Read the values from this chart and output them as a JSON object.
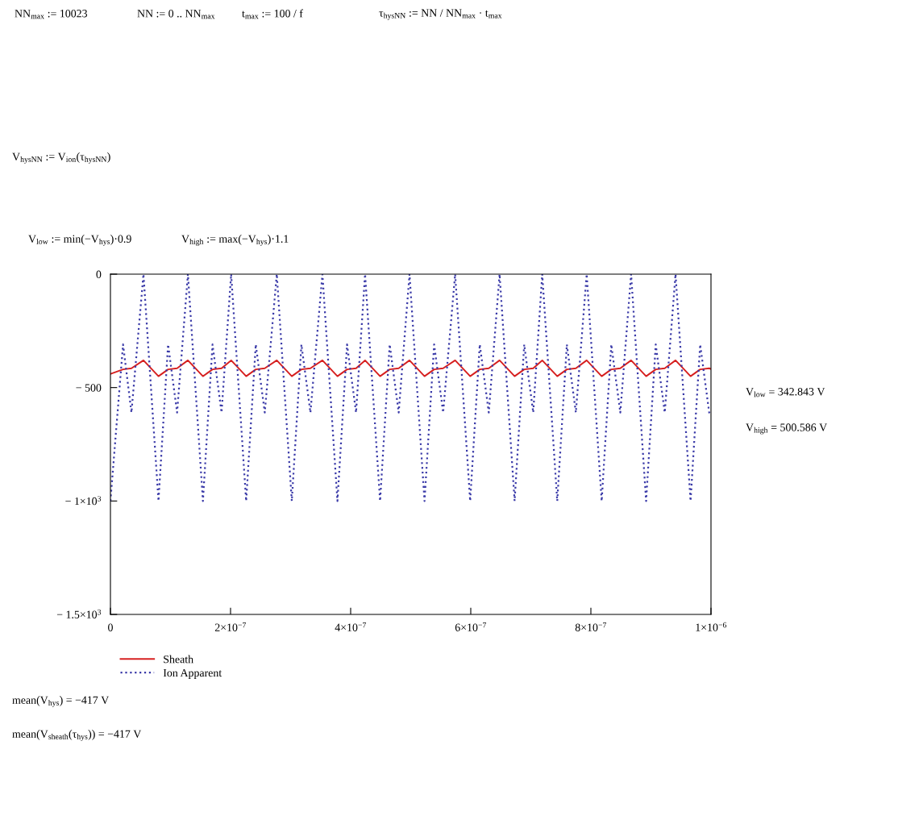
{
  "chart_data": {
    "type": "line",
    "x": [
      0,
      2.1e-08,
      3.5e-08,
      5.5e-08,
      8e-08,
      9.6e-08,
      1.11e-07,
      1.29e-07,
      1.54e-07,
      1.7e-07,
      1.85e-07,
      2.01e-07,
      2.26e-07,
      2.42e-07,
      2.57e-07,
      2.77e-07,
      3.02e-07,
      3.18e-07,
      3.33e-07,
      3.53e-07,
      3.78e-07,
      3.94e-07,
      4.09e-07,
      4.24e-07,
      4.49e-07,
      4.65e-07,
      4.8e-07,
      4.98e-07,
      5.23e-07,
      5.39e-07,
      5.54e-07,
      5.74e-07,
      5.99e-07,
      6.15e-07,
      6.3e-07,
      6.48e-07,
      6.73e-07,
      6.89e-07,
      7.04e-07,
      7.19e-07,
      7.44e-07,
      7.6e-07,
      7.75e-07,
      7.93e-07,
      8.18e-07,
      8.34e-07,
      8.49e-07,
      8.67e-07,
      8.92e-07,
      9.08e-07,
      9.23e-07,
      9.41e-07,
      9.66e-07,
      9.82e-07,
      9.97e-07,
      1e-06
    ],
    "series": [
      {
        "name": "Sheath",
        "color": "#d62020",
        "line_style": "solid",
        "values": [
          -440,
          -420,
          -415,
          -380,
          -450,
          -420,
          -415,
          -380,
          -450,
          -420,
          -415,
          -380,
          -450,
          -420,
          -415,
          -380,
          -450,
          -420,
          -415,
          -380,
          -450,
          -420,
          -415,
          -380,
          -450,
          -420,
          -415,
          -380,
          -450,
          -420,
          -415,
          -380,
          -450,
          -420,
          -415,
          -380,
          -450,
          -420,
          -415,
          -380,
          -450,
          -420,
          -415,
          -380,
          -450,
          -420,
          -415,
          -380,
          -450,
          -420,
          -415,
          -380,
          -450,
          -420,
          -415,
          -418
        ]
      },
      {
        "name": "Ion Apparent",
        "color": "#3a3aa8",
        "line_style": "dotted",
        "values": [
          -1000,
          -310,
          -610,
          0,
          -1000,
          -310,
          -610,
          0,
          -1000,
          -310,
          -610,
          0,
          -1000,
          -310,
          -610,
          0,
          -1000,
          -310,
          -610,
          0,
          -1000,
          -310,
          -610,
          0,
          -1000,
          -310,
          -610,
          0,
          -1000,
          -310,
          -610,
          0,
          -1000,
          -310,
          -610,
          0,
          -1000,
          -310,
          -610,
          0,
          -1000,
          -310,
          -610,
          0,
          -1000,
          -310,
          -610,
          0,
          -1000,
          -310,
          -610,
          0,
          -1000,
          -310,
          -610,
          -620
        ]
      }
    ],
    "xlim": [
      0,
      1e-06
    ],
    "xticks": [
      0,
      {
        "value": 2e-07,
        "label": "2×10$^{−7}$"
      },
      {
        "value": 4e-07,
        "label": "4×10$^{−7}$"
      },
      {
        "value": 6e-07,
        "label": "6×10$^{−7}$"
      },
      {
        "value": 8e-07,
        "label": "8×10$^{−7}$"
      },
      {
        "value": 1e-06,
        "label": "1×10$^{−6}$"
      }
    ],
    "ylim": [
      -1500,
      0
    ],
    "yticks": [
      0,
      {
        "value": -500,
        "label": "− 500"
      },
      {
        "value": -1000,
        "label": "− 1×10$^{3}$"
      },
      {
        "value": -1500,
        "label": "− 1.5×10$^{3}$"
      }
    ],
    "grid": false,
    "legend": "bottom left",
    "annotations": [
      "NN$_{max}$ := 10023",
      "NN := 0 .. NN$_{max}$",
      "t$_{max}$ := 100 / f",
      "τ$_{hysNN}$ := NN / NN$_{max}$ · t$_{max}$",
      "V$_{hysNN}$ := V$_{ion}$(τ$_{hysNN}$)",
      "V$_{low}$ := min(−V$_{hys}$)·0.9",
      "V$_{high}$ := max(−V$_{hys}$)·1.1",
      "V$_{low}$ = 342.843 V",
      "V$_{high}$ = 500.586 V",
      "mean(V$_{hys}$) = −417 V",
      "mean(V$_{sheath}$(τ$_{hys}$)) = −417 V"
    ]
  }
}
